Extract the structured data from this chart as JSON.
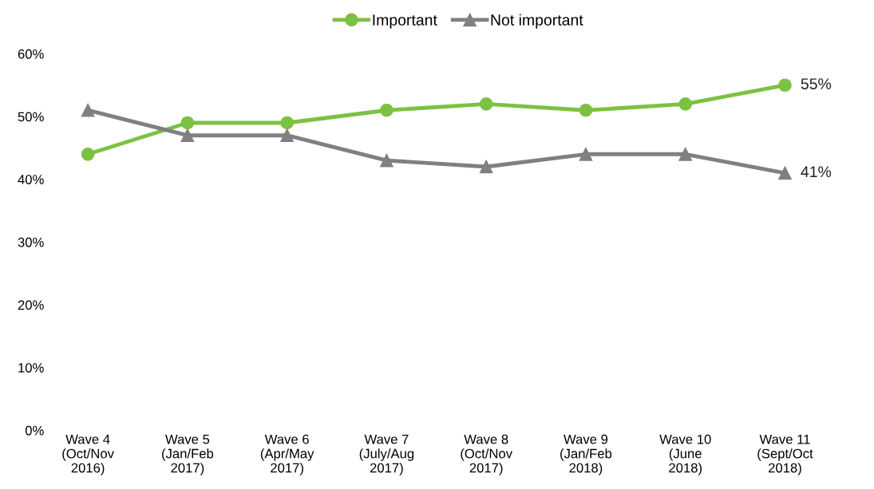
{
  "chart_data": {
    "type": "line",
    "categories": [
      "Wave 4\n(Oct/Nov\n2016)",
      "Wave 5\n(Jan/Feb\n2017)",
      "Wave 6\n(Apr/May\n2017)",
      "Wave 7\n(July/Aug\n2017)",
      "Wave 8\n(Oct/Nov\n2017)",
      "Wave 9\n(Jan/Feb\n2018)",
      "Wave 10\n(June\n2018)",
      "Wave 11\n(Sept/Oct\n2018)"
    ],
    "series": [
      {
        "name": "Important",
        "color": "#7dc142",
        "marker": "circle",
        "values": [
          44,
          49,
          49,
          51,
          52,
          51,
          52,
          55
        ],
        "value_labels": [
          null,
          null,
          null,
          null,
          null,
          null,
          null,
          "55%"
        ]
      },
      {
        "name": "Not important",
        "color": "#808080",
        "marker": "triangle",
        "values": [
          51,
          47,
          47,
          43,
          42,
          44,
          44,
          41
        ],
        "value_labels": [
          null,
          null,
          null,
          null,
          null,
          null,
          null,
          "41%"
        ]
      }
    ],
    "ylim": [
      0,
      60
    ],
    "yticks": [
      {
        "value": 0,
        "label": "0%"
      },
      {
        "value": 10,
        "label": "10%"
      },
      {
        "value": 20,
        "label": "20%"
      },
      {
        "value": 30,
        "label": "30%"
      },
      {
        "value": 40,
        "label": "40%"
      },
      {
        "value": 50,
        "label": "50%"
      },
      {
        "value": 60,
        "label": "60%"
      }
    ],
    "grid": false,
    "legend": "top",
    "line_style": "solid"
  }
}
